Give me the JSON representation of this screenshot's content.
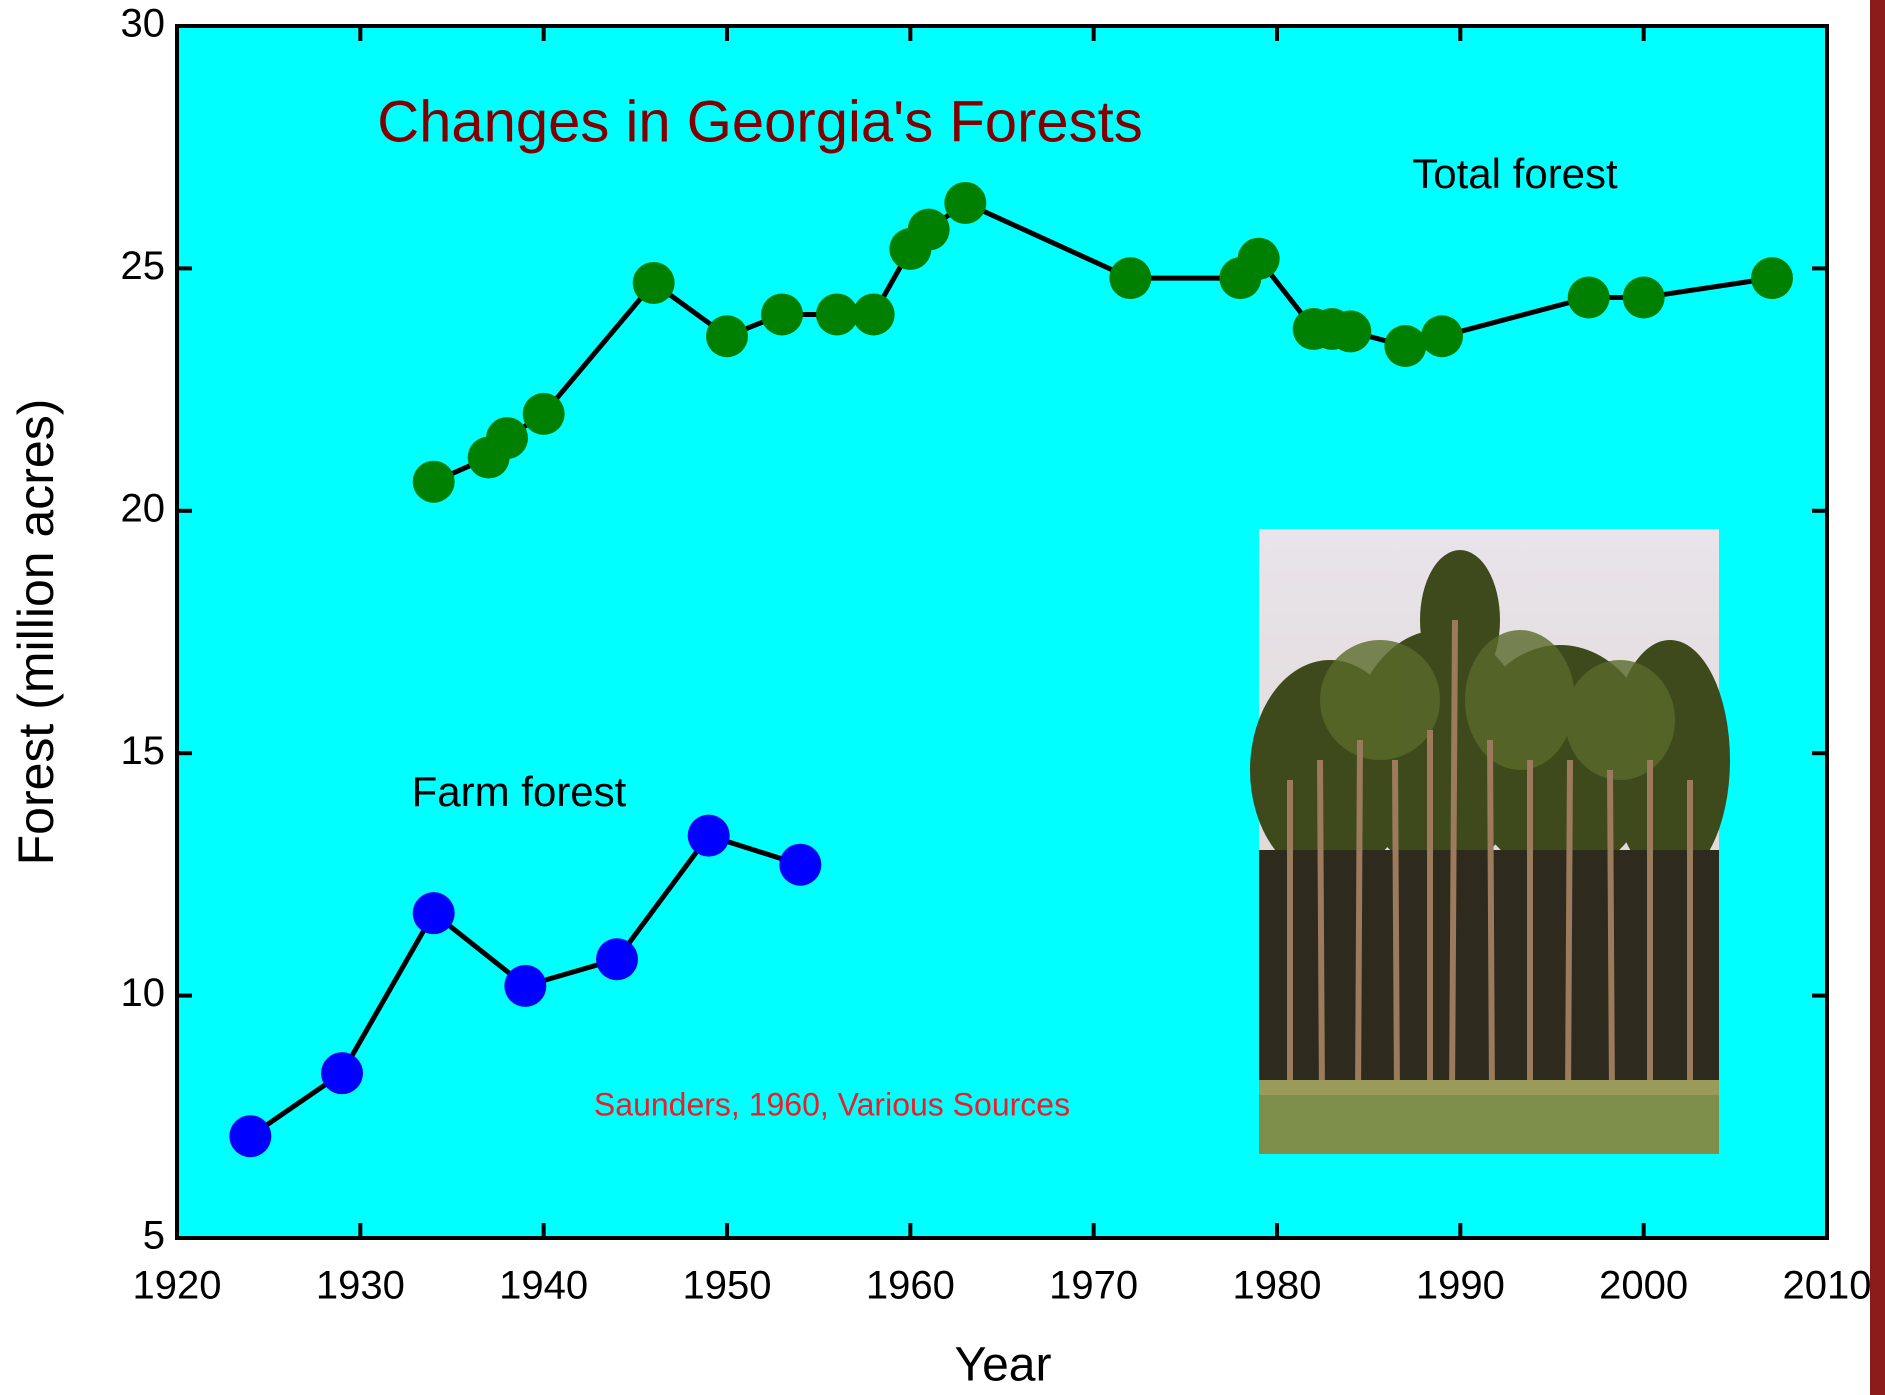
{
  "chart_data": {
    "type": "line",
    "title": "Changes in Georgia's Forests",
    "x_label": "Year",
    "y_label": "Forest (million acres)",
    "annotations": [
      "Total forest",
      "Farm forest",
      "Saunders, 1960, Various Sources"
    ],
    "series": [
      {
        "name": "Total forest",
        "color": "#008000",
        "x": [
          1934,
          1937,
          1938,
          1940,
          1946,
          1950,
          1953,
          1956,
          1958,
          1960,
          1961,
          1963,
          1972,
          1978,
          1979,
          1982,
          1983,
          1984,
          1987,
          1989,
          1997,
          2000,
          2007
        ],
        "values": [
          20.6,
          21.1,
          21.5,
          22.0,
          24.7,
          23.6,
          24.05,
          24.05,
          24.05,
          25.4,
          25.8,
          26.35,
          24.8,
          24.8,
          25.2,
          23.75,
          23.75,
          23.7,
          23.4,
          23.6,
          24.4,
          24.4,
          24.8
        ]
      },
      {
        "name": "Farm forest",
        "color": "#0000ff",
        "x": [
          1924,
          1929,
          1934,
          1939,
          1944,
          1949,
          1954
        ],
        "values": [
          7.1,
          8.4,
          11.7,
          10.2,
          10.75,
          13.3,
          12.7
        ]
      }
    ],
    "line_color": "#000000",
    "background": "#00ffff",
    "xlim": [
      1920,
      2010
    ],
    "xticks": [
      1920,
      1930,
      1940,
      1950,
      1960,
      1970,
      1980,
      1990,
      2000,
      2010
    ],
    "ylim": [
      5,
      30
    ],
    "yticks": [
      5,
      10,
      15,
      20,
      25,
      30
    ],
    "grid": false
  }
}
